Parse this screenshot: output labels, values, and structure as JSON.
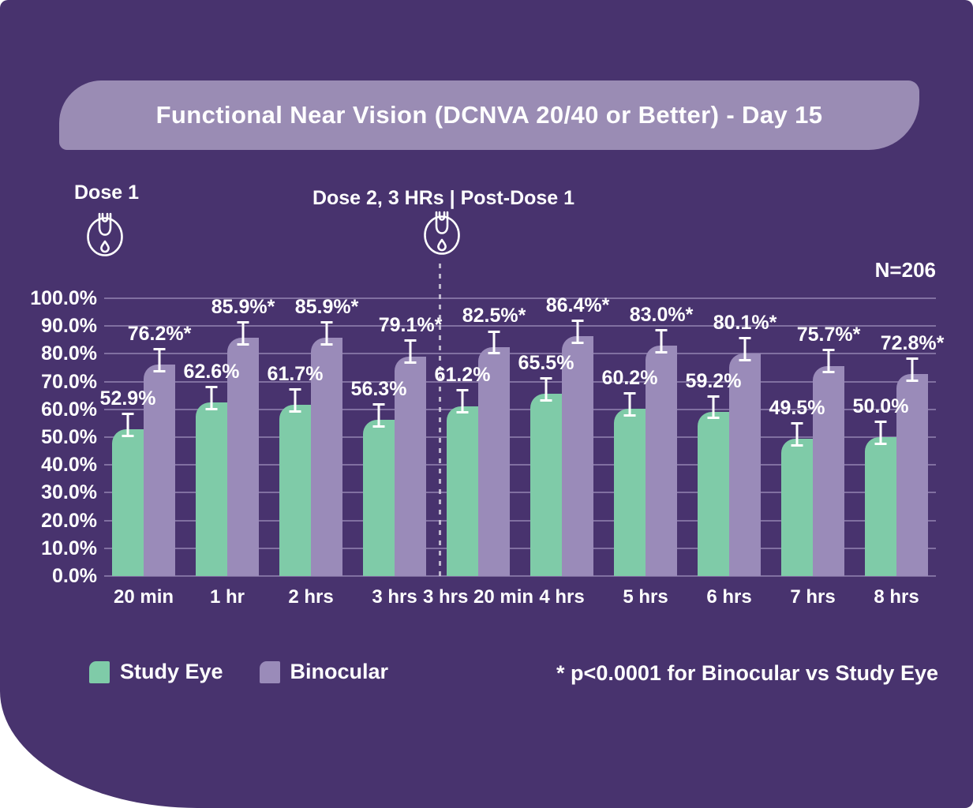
{
  "page": {
    "background_color": "#FFFFFF",
    "card_color": "#48336E"
  },
  "title": {
    "text": "Functional Near Vision (DCNVA 20/40 or Better) - Day 15",
    "banner_color": "#9A8CB4"
  },
  "doses": {
    "dose1": {
      "label": "Dose 1",
      "icon": "eye-dropper-icon"
    },
    "dose2": {
      "label": "Dose 2, 3 HRs | Post-Dose 1",
      "icon": "eye-dropper-icon",
      "divider": "dashed-vertical-line"
    }
  },
  "sample_size": "N=206",
  "footnote": "* p<0.0001 for Binocular vs Study Eye",
  "legend": {
    "position": "bottom-left",
    "items": [
      {
        "label": "Study Eye",
        "color": "#7FCBA8"
      },
      {
        "label": "Binocular",
        "color": "#9A8BB9"
      }
    ]
  },
  "chart_data": {
    "type": "bar",
    "title": "Functional Near Vision (DCNVA 20/40 or Better) - Day 15",
    "categories": [
      "20 min",
      "1 hr",
      "2 hrs",
      "3 hrs",
      "3 hrs 20 min",
      "4 hrs",
      "5 hrs",
      "6 hrs",
      "7 hrs",
      "8 hrs"
    ],
    "series": [
      {
        "name": "Study Eye",
        "color": "#7FCBA8",
        "values": [
          52.9,
          62.6,
          61.7,
          56.3,
          61.2,
          65.5,
          60.2,
          59.2,
          49.5,
          50.0
        ],
        "labels": [
          "52.9%",
          "62.6%",
          "61.7%",
          "56.3%",
          "61.2%",
          "65.5%",
          "60.2%",
          "59.2%",
          "49.5%",
          "50.0%"
        ]
      },
      {
        "name": "Binocular",
        "color": "#9A8BB9",
        "values": [
          76.2,
          85.9,
          85.9,
          79.1,
          82.5,
          86.4,
          83.0,
          80.1,
          75.7,
          72.8
        ],
        "labels": [
          "76.2%*",
          "85.9%*",
          "85.9%*",
          "79.1%*",
          "82.5%*",
          "86.4%*",
          "83.0%*",
          "80.1%*",
          "75.7%*",
          "72.8%*"
        ]
      }
    ],
    "ylabel": "",
    "xlabel": "",
    "ylim": [
      0,
      100
    ],
    "y_ticks": [
      "0.0%",
      "10.0%",
      "20.0%",
      "30.0%",
      "40.0%",
      "50.0%",
      "60.0%",
      "70.0%",
      "80.0%",
      "90.0%",
      "100.0%"
    ],
    "grid": true,
    "error_bars": true,
    "error_bar_extent_pct": {
      "above": 6.0,
      "below": 2.8
    },
    "dose2_divider_between": [
      "3 hrs",
      "3 hrs 20 min"
    ]
  }
}
